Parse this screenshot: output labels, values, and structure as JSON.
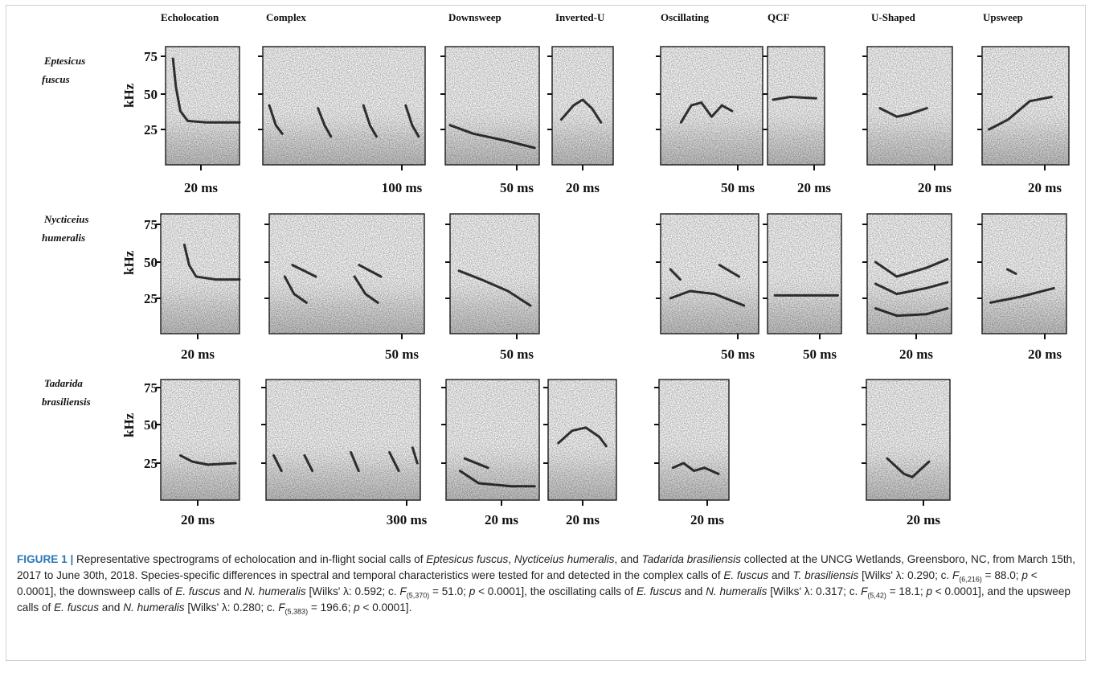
{
  "figure": {
    "columns": [
      "Echolocation",
      "Complex",
      "Downsweep",
      "Inverted-U",
      "Oscillating",
      "QCF",
      "U-Shaped",
      "Upsweep"
    ],
    "y_axis": {
      "label": "kHz",
      "ticks": [
        "75",
        "50",
        "25"
      ]
    },
    "rows": [
      {
        "species_line1": "Eptesicus",
        "species_line2": "fuscus",
        "panels": [
          {
            "col": "Echolocation",
            "scale": "20 ms"
          },
          {
            "col": "Complex",
            "scale": "100 ms"
          },
          {
            "col": "Downsweep",
            "scale": "50 ms"
          },
          {
            "col": "Inverted-U",
            "scale": "20 ms"
          },
          {
            "col": "Oscillating",
            "scale": "50 ms"
          },
          {
            "col": "QCF",
            "scale": "20 ms"
          },
          {
            "col": "U-Shaped",
            "scale": "20 ms"
          },
          {
            "col": "Upsweep",
            "scale": "20 ms"
          }
        ]
      },
      {
        "species_line1": "Nycticeius",
        "species_line2": "humeralis",
        "panels": [
          {
            "col": "Echolocation",
            "scale": "20 ms"
          },
          {
            "col": "Complex",
            "scale": "50 ms"
          },
          {
            "col": "Downsweep",
            "scale": "50 ms"
          },
          {
            "col": "Oscillating",
            "scale": "50 ms"
          },
          {
            "col": "QCF",
            "scale": "50 ms"
          },
          {
            "col": "U-Shaped",
            "scale": "20 ms"
          },
          {
            "col": "Upsweep",
            "scale": "20 ms"
          }
        ]
      },
      {
        "species_line1": "Tadarida",
        "species_line2": "brasiliensis",
        "panels": [
          {
            "col": "Echolocation",
            "scale": "20 ms"
          },
          {
            "col": "Complex",
            "scale": "300 ms"
          },
          {
            "col": "Downsweep",
            "scale": "20 ms"
          },
          {
            "col": "Inverted-U",
            "scale": "20 ms"
          },
          {
            "col": "Oscillating",
            "scale": "20 ms"
          },
          {
            "col": "U-Shaped",
            "scale": "20 ms"
          }
        ]
      }
    ]
  },
  "caption": {
    "label": "FIGURE 1 |",
    "t1": " Representative spectrograms of echolocation and in-flight social calls of ",
    "sp1": "Eptesicus fuscus",
    "t2": ", ",
    "sp2": "Nycticeius humeralis",
    "t3": ", and ",
    "sp3": "Tadarida brasiliensis",
    "t4": " collected at the UNCG Wetlands, Greensboro, NC, from March 15th, 2017 to June 30th, 2018. Species-specific differences in spectral and temporal characteristics were tested for and detected in the complex calls of ",
    "sp4": "E. fuscus",
    "t5": " and ",
    "sp5": "T. brasiliensis",
    "t6": " [Wilks' λ: 0.290; c. ",
    "F1": "F",
    "F1sub": "(6,216)",
    "t7": " = 88.0; ",
    "p1": "p",
    "t8": " < 0.0001], the downsweep calls of ",
    "sp6": "E. fuscus",
    "t9": " and ",
    "sp7": "N. humeralis",
    "t10": " [Wilks' λ: 0.592; c. ",
    "F2": "F",
    "F2sub": "(5,370)",
    "t11": " = 51.0; ",
    "p2": "p",
    "t12": " < 0.0001], the oscillating calls of ",
    "sp8": "E. fuscus",
    "t13": " and ",
    "sp9": "N. humeralis",
    "t14": " [Wilks' λ: 0.317; c. ",
    "F3": "F",
    "F3sub": "(5,42)",
    "t15": " = 18.1; ",
    "p3": "p",
    "t16": " < 0.0001], and the upsweep calls of ",
    "sp10": "E. fuscus",
    "t17": " and ",
    "sp11": "N. humeralis",
    "t18": " [Wilks' λ: 0.280; c. ",
    "F4": "F",
    "F4sub": "(5,383)",
    "t19": " = 196.6; ",
    "p4": "p",
    "t20": " < 0.0001]."
  }
}
